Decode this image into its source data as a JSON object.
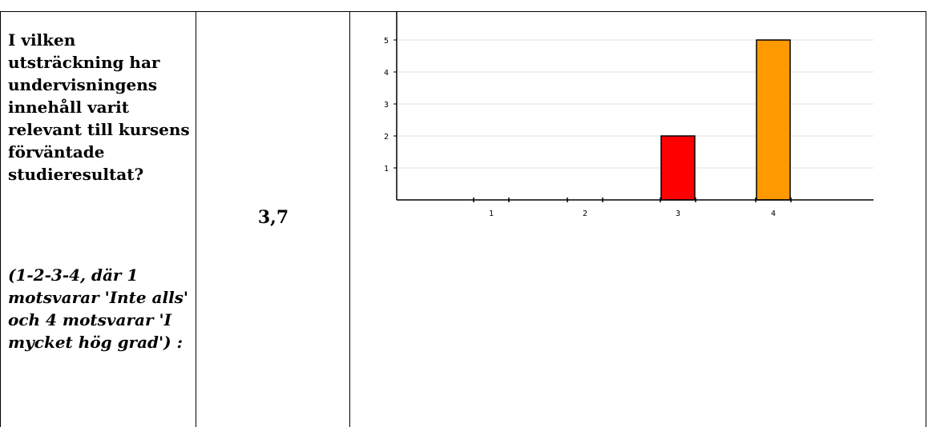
{
  "question": {
    "text": "I vilken utsträckning har undervisningens innehåll varit relevant till kursens förväntade studieresultat?",
    "scale_note": "(1-2-3-4, där 1 motsvarar 'Inte alls' och 4 motsvarar 'I mycket hög grad') :"
  },
  "mean_score": "3,7",
  "colors": {
    "grid": "#e0e0e0",
    "axis": "#000000",
    "bar_3": "#ff0000",
    "bar_4": "#ff9900"
  },
  "chart_data": {
    "type": "bar",
    "categories": [
      "1",
      "2",
      "3",
      "4"
    ],
    "values": [
      0,
      0,
      2,
      5
    ],
    "bar_colors": [
      "#ff0000",
      "#ff0000",
      "#ff0000",
      "#ff9900"
    ],
    "title": "",
    "xlabel": "",
    "ylabel": "",
    "yticks": [
      "1",
      "2",
      "3",
      "4",
      "5"
    ],
    "ylim": [
      0,
      5.9
    ],
    "grid": true,
    "legend": "none"
  }
}
